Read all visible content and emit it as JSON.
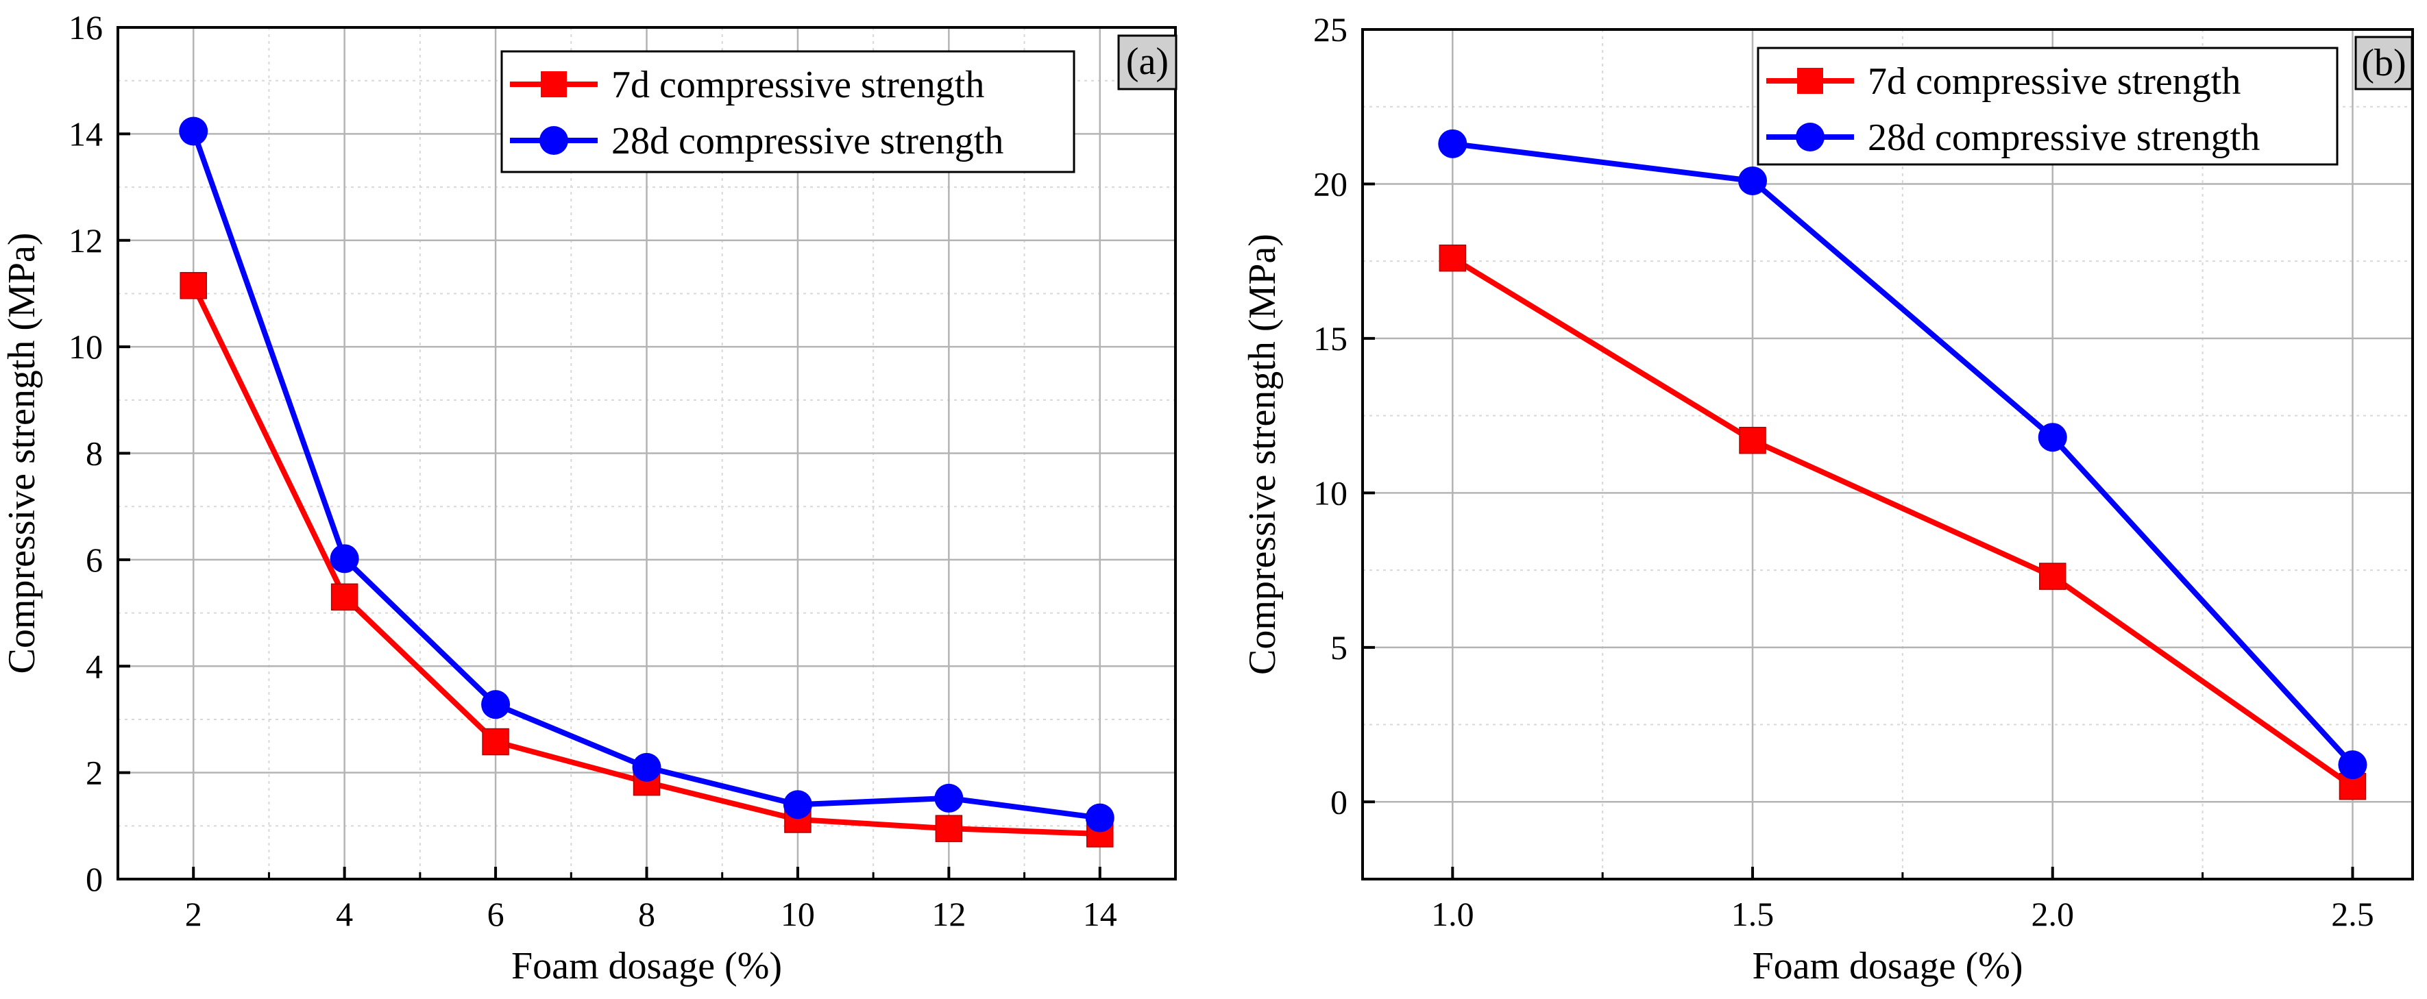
{
  "chart_data": [
    {
      "type": "line",
      "panel_label": "(a)",
      "xlabel": "Foam dosage (%)",
      "ylabel": "Compressive strength (MPa)",
      "xlim": [
        1,
        15
      ],
      "ylim": [
        0,
        16
      ],
      "xticks": [
        2,
        4,
        6,
        8,
        10,
        12,
        14
      ],
      "yticks": [
        0,
        2,
        4,
        6,
        8,
        10,
        12,
        14,
        16
      ],
      "x": [
        2,
        4,
        6,
        8,
        10,
        12,
        14
      ],
      "series": [
        {
          "name": "7d compressive strength",
          "color": "#ff0000",
          "marker": "square",
          "values": [
            11.15,
            5.3,
            2.58,
            1.82,
            1.12,
            0.95,
            0.85
          ]
        },
        {
          "name": "28d compressive strength",
          "color": "#0000ff",
          "marker": "circle",
          "values": [
            14.05,
            6.02,
            3.28,
            2.1,
            1.4,
            1.52,
            1.15
          ]
        }
      ],
      "grid": true,
      "legend_position": "top-right"
    },
    {
      "type": "line",
      "panel_label": "(b)",
      "xlabel": "Foam dosage (%)",
      "ylabel": "Compressive strength (MPa)",
      "xlim": [
        0.85,
        2.6
      ],
      "ylim": [
        -2.5,
        25
      ],
      "xticks": [
        "1.0",
        "1.5",
        "2.0",
        "2.5"
      ],
      "yticks": [
        0,
        5,
        10,
        15,
        20,
        25
      ],
      "x": [
        1.0,
        1.5,
        2.0,
        2.5
      ],
      "series": [
        {
          "name": "7d compressive strength",
          "color": "#ff0000",
          "marker": "square",
          "values": [
            17.6,
            11.7,
            7.3,
            0.5
          ]
        },
        {
          "name": "28d compressive strength",
          "color": "#0000ff",
          "marker": "circle",
          "values": [
            21.3,
            20.1,
            11.8,
            1.2
          ]
        }
      ],
      "grid": true,
      "legend_position": "top-right"
    }
  ]
}
